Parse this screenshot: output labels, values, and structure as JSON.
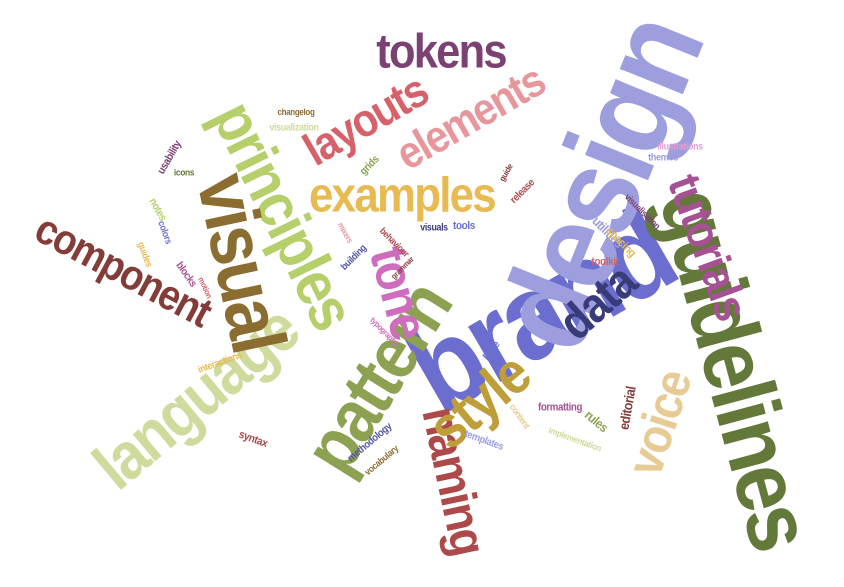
{
  "words": [
    {
      "text": "brand",
      "color": "#6b6ecf"
    },
    {
      "text": "design",
      "color": "#9c9ede"
    },
    {
      "text": "guidelines",
      "color": "#637939"
    },
    {
      "text": "language",
      "color": "#cedb9c"
    },
    {
      "text": "pattern",
      "color": "#8ca252"
    },
    {
      "text": "principles",
      "color": "#b5cf6b"
    },
    {
      "text": "visual",
      "color": "#8c6d31"
    },
    {
      "text": "component",
      "color": "#843c39"
    },
    {
      "text": "naming",
      "color": "#ad494a"
    },
    {
      "text": "tokens",
      "color": "#7b4173"
    },
    {
      "text": "elements",
      "color": "#e7969c"
    },
    {
      "text": "layouts",
      "color": "#d6616b"
    },
    {
      "text": "examples",
      "color": "#e7ba52"
    },
    {
      "text": "tutorials",
      "color": "#a55194"
    },
    {
      "text": "style",
      "color": "#bd9e39"
    },
    {
      "text": "voice",
      "color": "#e7cb94"
    },
    {
      "text": "data",
      "color": "#393b79"
    },
    {
      "text": "tone",
      "color": "#ce6dbd"
    },
    {
      "text": "changelog",
      "color": "#8c6d31"
    },
    {
      "text": "visualization",
      "color": "#cedb9c"
    },
    {
      "text": "usability",
      "color": "#7b4173"
    },
    {
      "text": "icons",
      "color": "#637939"
    },
    {
      "text": "grids",
      "color": "#8ca252"
    },
    {
      "text": "guide",
      "color": "#843c39"
    },
    {
      "text": "release",
      "color": "#ad494a"
    },
    {
      "text": "illustrations",
      "color": "#de9ed6"
    },
    {
      "text": "themes",
      "color": "#9c9ede"
    },
    {
      "text": "visualisation",
      "color": "#7b4173"
    },
    {
      "text": "notes",
      "color": "#b5cf6b"
    },
    {
      "text": "colors",
      "color": "#6b6ecf"
    },
    {
      "text": "guides",
      "color": "#e7ba52"
    },
    {
      "text": "blocks",
      "color": "#a55194"
    },
    {
      "text": "motion",
      "color": "#d6616b"
    },
    {
      "text": "mixers",
      "color": "#e7969c"
    },
    {
      "text": "behaviour",
      "color": "#ad494a"
    },
    {
      "text": "visuals",
      "color": "#393b79"
    },
    {
      "text": "tools",
      "color": "#6b6ecf"
    },
    {
      "text": "building",
      "color": "#5254a3"
    },
    {
      "text": "grammar",
      "color": "#843c39"
    },
    {
      "text": "utilities",
      "color": "#9c9ede"
    },
    {
      "text": "spacing",
      "color": "#e7ba52"
    },
    {
      "text": "toolkit",
      "color": "#d6616b"
    },
    {
      "text": "typography",
      "color": "#ce6dbd"
    },
    {
      "text": "interactions",
      "color": "#e7ba52"
    },
    {
      "text": "page",
      "color": "#6b6ecf"
    },
    {
      "text": "formatting",
      "color": "#a55194"
    },
    {
      "text": "editorial",
      "color": "#843c39"
    },
    {
      "text": "rules",
      "color": "#8ca252"
    },
    {
      "text": "implementation",
      "color": "#cedb9c"
    },
    {
      "text": "content",
      "color": "#e7cb94"
    },
    {
      "text": "templates",
      "color": "#9c9ede"
    },
    {
      "text": "methodology",
      "color": "#5254a3"
    },
    {
      "text": "vocabulary",
      "color": "#8c6d31"
    },
    {
      "text": "syntax",
      "color": "#ad494a"
    }
  ]
}
